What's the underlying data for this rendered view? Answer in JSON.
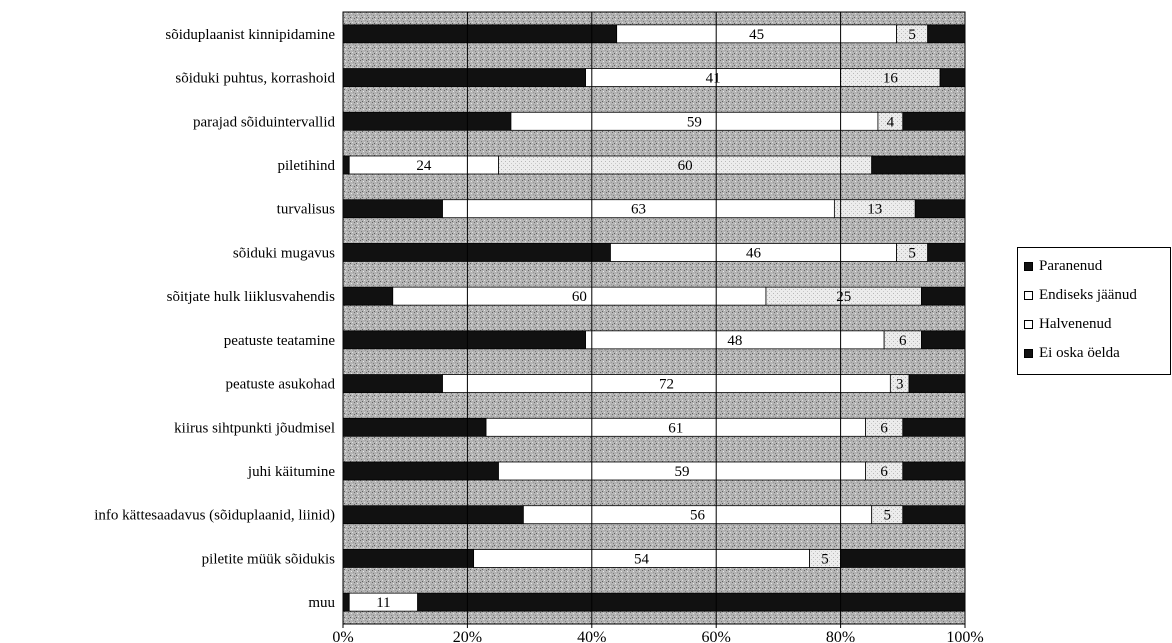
{
  "chart_data": {
    "type": "bar",
    "orientation": "horizontal",
    "stacked": "percent",
    "categories": [
      "sõiduplaanist kinnipidamine",
      "sõiduki puhtus, korrashoid",
      "parajad sõiduintervallid",
      "piletihind",
      "turvalisus",
      "sõiduki mugavus",
      "sõitjate hulk liiklusvahendis",
      "peatuste teatamine",
      "peatuste asukohad",
      "kiirus sihtpunkti jõudmisel",
      "juhi käitumine",
      "info kättesaadavus (sõiduplaanid, liinid)",
      "piletite müük sõidukis",
      "muu"
    ],
    "series": [
      {
        "name": "Paranenud",
        "color": "#111111",
        "values": [
          44,
          39,
          27,
          1,
          16,
          43,
          8,
          39,
          16,
          23,
          25,
          29,
          21,
          1
        ]
      },
      {
        "name": "Endiseks jäänud",
        "color": "#ffffff",
        "values": [
          45,
          41,
          59,
          24,
          63,
          46,
          60,
          48,
          72,
          61,
          59,
          56,
          54,
          11
        ]
      },
      {
        "name": "Halvenenud",
        "color": "#e4e4e4",
        "values": [
          5,
          16,
          4,
          60,
          13,
          5,
          25,
          6,
          3,
          6,
          6,
          5,
          5,
          0
        ]
      },
      {
        "name": "Ei oska öelda",
        "color": "#111111",
        "values": [
          6,
          4,
          10,
          15,
          8,
          6,
          7,
          7,
          9,
          10,
          10,
          10,
          20,
          88
        ]
      }
    ],
    "data_labels": [
      [
        "45",
        "5"
      ],
      [
        "41",
        "16"
      ],
      [
        "59",
        "4"
      ],
      [
        "24",
        "60"
      ],
      [
        "63",
        "13"
      ],
      [
        "46",
        "5"
      ],
      [
        "60",
        "25"
      ],
      [
        "48",
        "6"
      ],
      [
        "72",
        "3"
      ],
      [
        "61",
        "6"
      ],
      [
        "59",
        "6"
      ],
      [
        "56",
        "5"
      ],
      [
        "54",
        "5"
      ],
      [
        "11",
        ""
      ]
    ],
    "x_ticks": [
      "0%",
      "20%",
      "40%",
      "60%",
      "80%",
      "100%"
    ],
    "xlim": [
      0,
      100
    ],
    "grid": true,
    "legend_position": "right",
    "title": "",
    "xlabel": "",
    "ylabel": ""
  }
}
